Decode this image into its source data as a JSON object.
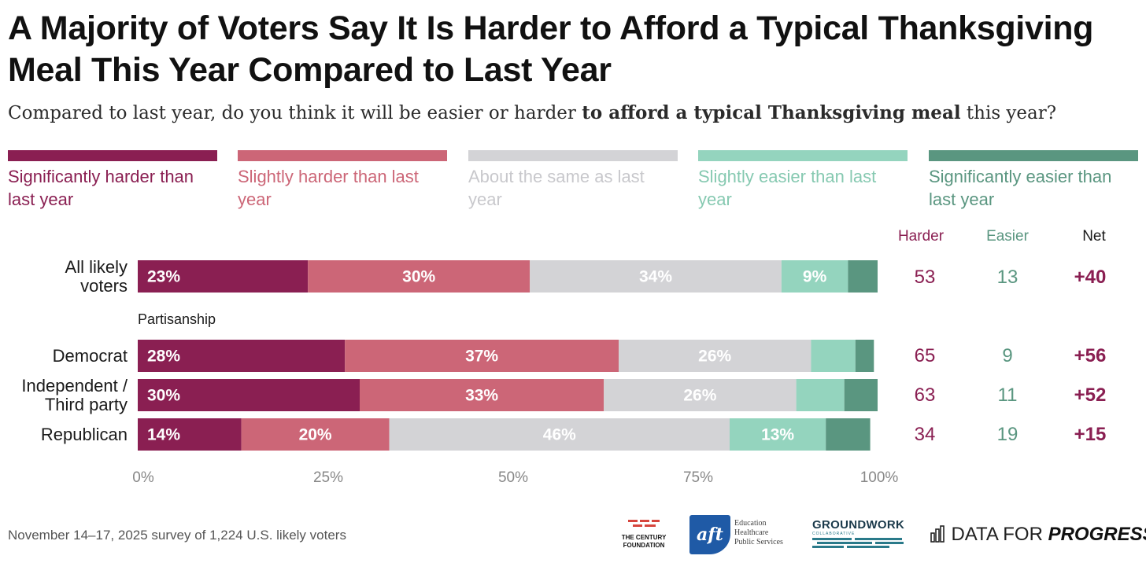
{
  "title_line1": "A Majority of Voters Say It Is Harder to Afford a Typical Thanksgiving",
  "title_line2": "Meal This Year Compared to Last Year",
  "subtitle_pre": "Compared to last year, do you think it will be easier or harder ",
  "subtitle_bold": "to afford a typical Thanksgiving meal",
  "subtitle_post": " this year?",
  "colors": {
    "sig_harder": "#8a1f52",
    "slight_harder": "#cc6677",
    "same": "#d3d3d6",
    "slight_easier": "#94d4be",
    "sig_easier": "#5a9680"
  },
  "legend": [
    {
      "line1": "Significantly harder than",
      "line2": "last year"
    },
    {
      "line1": "Slightly harder than last",
      "line2": "year"
    },
    {
      "line1": "About the same as last",
      "line2": "year"
    },
    {
      "line1": "Slightly easier than last",
      "line2": "year"
    },
    {
      "line1": "Significantly easier than",
      "line2": "last year"
    }
  ],
  "columns": {
    "harder": "Harder",
    "easier": "Easier",
    "net": "Net"
  },
  "group_label": "Partisanship",
  "rows": [
    {
      "label_line1": "All likely",
      "label_line2": "voters",
      "harder": "53",
      "easier": "13",
      "net": "+40"
    },
    {
      "label_line1": "Democrat",
      "label_line2": "",
      "harder": "65",
      "easier": "9",
      "net": "+56"
    },
    {
      "label_line1": "Independent /",
      "label_line2": "Third party",
      "harder": "63",
      "easier": "11",
      "net": "+52"
    },
    {
      "label_line1": "Republican",
      "label_line2": "",
      "harder": "34",
      "easier": "19",
      "net": "+15"
    }
  ],
  "axis_ticks": [
    "0%",
    "25%",
    "50%",
    "75%",
    "100%"
  ],
  "footer": "November 14–17, 2025 survey of 1,224 U.S. likely voters",
  "logos": {
    "century_line1": "THE CENTURY",
    "century_line2": "FOUNDATION",
    "aft_mark": "aft",
    "aft_line1": "Education",
    "aft_line2": "Healthcare",
    "aft_line3": "Public Services",
    "groundwork": "GROUNDWORK",
    "groundwork_sub": "COLLABORATIVE",
    "dfp_regular": "DATA FOR ",
    "dfp_bold": "PROGRESS"
  },
  "chart_data": {
    "type": "bar",
    "orientation": "horizontal-stacked",
    "categories": [
      "All likely voters",
      "Democrat",
      "Independent / Third party",
      "Republican"
    ],
    "series": [
      {
        "name": "Significantly harder than last year",
        "values": [
          23,
          28,
          30,
          14
        ]
      },
      {
        "name": "Slightly harder than last year",
        "values": [
          30,
          37,
          33,
          20
        ]
      },
      {
        "name": "About the same as last year",
        "values": [
          34,
          26,
          26,
          46
        ]
      },
      {
        "name": "Slightly easier than last year",
        "values": [
          9,
          6,
          6.5,
          13
        ]
      },
      {
        "name": "Significantly easier than last year",
        "values": [
          4,
          2.5,
          4.5,
          6
        ]
      }
    ],
    "shown_labels": [
      [
        "23%",
        "30%",
        "34%",
        "9%",
        ""
      ],
      [
        "28%",
        "37%",
        "26%",
        "",
        ""
      ],
      [
        "30%",
        "33%",
        "26%",
        "",
        ""
      ],
      [
        "14%",
        "20%",
        "46%",
        "13%",
        ""
      ]
    ],
    "xlim": [
      0,
      100
    ],
    "legend": "top"
  }
}
